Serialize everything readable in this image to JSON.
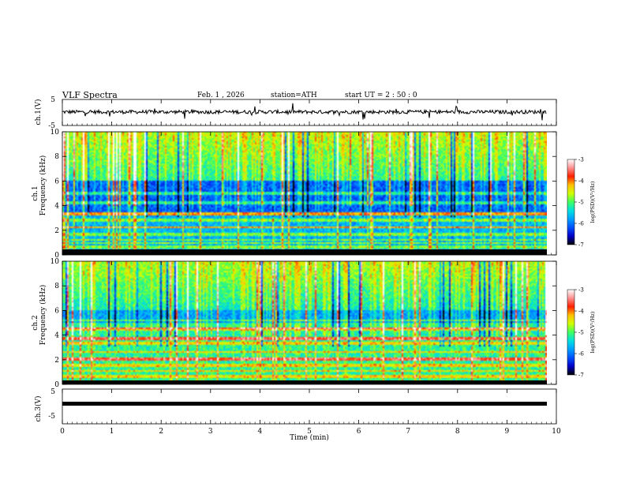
{
  "header": {
    "title": "VLF  Spectra",
    "date": "Feb. 1 , 2026",
    "station": "station=ATH",
    "start_ut": "start  UT  =   2 : 50 : 0"
  },
  "chart_data": [
    {
      "type": "line",
      "name": "ch1-waveform",
      "ylabel": "ch.1(V)",
      "ylim": [
        -5,
        5
      ],
      "yticks": [
        "5",
        "-5"
      ],
      "xlim": [
        0,
        10
      ],
      "baseline": 0.2
    },
    {
      "type": "heatmap",
      "name": "ch1-spectrogram",
      "ylabel_line1": "ch.1",
      "ylabel_line2": "Frequency  (kHz)",
      "ylim": [
        0,
        10
      ],
      "yticks": [
        "0",
        "2",
        "4",
        "6",
        "8",
        "10"
      ],
      "xlim": [
        0,
        9.8
      ],
      "lines_khz": [
        0.2,
        0.6,
        0.9,
        1.2,
        1.6,
        2.2,
        2.8,
        3.3,
        4.2,
        5.0
      ],
      "strong_lines_khz": [
        2.2,
        3.3
      ],
      "colorbar": {
        "label": "log(PSD)(V²/Hz)",
        "ticks": [
          "-3",
          "-4",
          "-5",
          "-6",
          "-7"
        ],
        "range": [
          -7,
          -3
        ]
      }
    },
    {
      "type": "heatmap",
      "name": "ch2-spectrogram",
      "ylabel_line1": "ch.2",
      "ylabel_line2": "Frequency  (kHz)",
      "ylim": [
        0,
        10
      ],
      "yticks": [
        "0",
        "2",
        "4",
        "6",
        "8",
        "10"
      ],
      "xlim": [
        0,
        9.8
      ],
      "lines_khz": [
        0.6,
        1.0,
        1.5,
        2.0,
        2.6,
        3.3,
        3.7,
        4.5,
        5.2
      ],
      "strong_lines_khz": [
        2.0,
        3.7,
        4.5
      ],
      "colorbar": {
        "label": "log(PSD)(V²/Hz)",
        "ticks": [
          "-3",
          "-4",
          "-5",
          "-6",
          "-7"
        ],
        "range": [
          -7,
          -3
        ]
      }
    },
    {
      "type": "line",
      "name": "ch3-waveform",
      "ylabel": "ch.3(V)",
      "ylim": [
        -5,
        5
      ],
      "yticks": [
        "5",
        "-5"
      ],
      "xlim": [
        0,
        10
      ],
      "baseline": -1.0
    }
  ],
  "xaxis": {
    "label": "Time  (min)",
    "ticks": [
      "0",
      "1",
      "2",
      "3",
      "4",
      "5",
      "6",
      "7",
      "8",
      "9",
      "10"
    ],
    "range": [
      0,
      10
    ]
  },
  "colors": {
    "scale": [
      "#000000",
      "#0000c8",
      "#0050ff",
      "#00a0ff",
      "#00e0e0",
      "#40ff60",
      "#d0ff00",
      "#ffc000",
      "#ff2000",
      "#ff9090",
      "#ffffff"
    ]
  }
}
